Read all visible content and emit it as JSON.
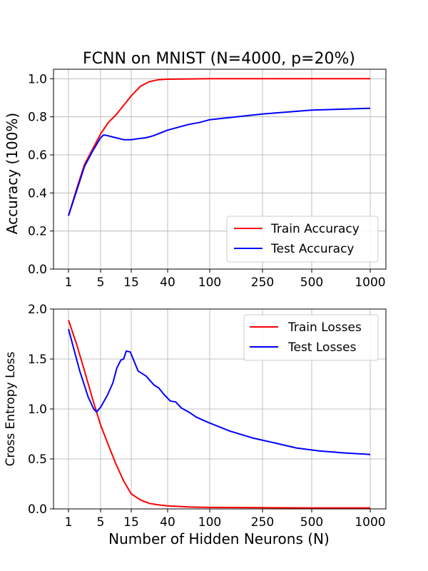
{
  "chart_data": [
    {
      "type": "line",
      "title": "FCNN on MNIST (N=4000, p=20%)",
      "xlabel": "",
      "ylabel": "Accuracy (100%)",
      "x_ticks": [
        "1",
        "5",
        "15",
        "40",
        "100",
        "250",
        "500",
        "1000"
      ],
      "ylim": [
        0.0,
        1.05
      ],
      "y_ticks": [
        "0.0",
        "0.2",
        "0.4",
        "0.6",
        "0.8",
        "1.0"
      ],
      "grid": true,
      "legend_position": "lower-right",
      "series": [
        {
          "name": "Train Accuracy",
          "color": "#ff0000",
          "points": [
            [
              0,
              0.28
            ],
            [
              0.25,
              0.42
            ],
            [
              0.5,
              0.55
            ],
            [
              0.75,
              0.63
            ],
            [
              1.0,
              0.71
            ],
            [
              1.25,
              0.77
            ],
            [
              1.5,
              0.81
            ],
            [
              1.75,
              0.86
            ],
            [
              2.0,
              0.91
            ],
            [
              2.25,
              0.96
            ],
            [
              2.5,
              0.985
            ],
            [
              2.75,
              0.995
            ],
            [
              3.0,
              0.998
            ],
            [
              3.5,
              0.999
            ],
            [
              4,
              1.0
            ],
            [
              5,
              1.0
            ],
            [
              6,
              1.0
            ],
            [
              7,
              1.0
            ]
          ]
        },
        {
          "name": "Test Accuracy",
          "color": "#0000ff",
          "points": [
            [
              0,
              0.28
            ],
            [
              0.25,
              0.41
            ],
            [
              0.5,
              0.54
            ],
            [
              0.75,
              0.62
            ],
            [
              1.0,
              0.69
            ],
            [
              1.1,
              0.705
            ],
            [
              1.25,
              0.7
            ],
            [
              1.5,
              0.69
            ],
            [
              1.75,
              0.68
            ],
            [
              2.0,
              0.68
            ],
            [
              2.2,
              0.685
            ],
            [
              2.4,
              0.69
            ],
            [
              2.6,
              0.7
            ],
            [
              2.8,
              0.715
            ],
            [
              3.0,
              0.73
            ],
            [
              3.25,
              0.745
            ],
            [
              3.5,
              0.76
            ],
            [
              3.75,
              0.77
            ],
            [
              4.0,
              0.785
            ],
            [
              4.5,
              0.8
            ],
            [
              5.0,
              0.815
            ],
            [
              5.5,
              0.825
            ],
            [
              6.0,
              0.835
            ],
            [
              6.5,
              0.84
            ],
            [
              7.0,
              0.845
            ]
          ]
        }
      ]
    },
    {
      "type": "line",
      "title": "",
      "xlabel": "Number of Hidden Neurons (N)",
      "ylabel": "Cross Entropy Loss",
      "x_ticks": [
        "1",
        "5",
        "15",
        "40",
        "100",
        "250",
        "500",
        "1000"
      ],
      "ylim": [
        0.0,
        2.0
      ],
      "y_ticks": [
        "0.0",
        "0.5",
        "1.0",
        "1.5",
        "2.0"
      ],
      "grid": true,
      "legend_position": "upper-right",
      "series": [
        {
          "name": "Train Losses",
          "color": "#ff0000",
          "points": [
            [
              0,
              1.89
            ],
            [
              0.25,
              1.65
            ],
            [
              0.5,
              1.38
            ],
            [
              0.75,
              1.1
            ],
            [
              1.0,
              0.84
            ],
            [
              1.25,
              0.64
            ],
            [
              1.5,
              0.45
            ],
            [
              1.75,
              0.28
            ],
            [
              2.0,
              0.15
            ],
            [
              2.25,
              0.09
            ],
            [
              2.5,
              0.055
            ],
            [
              2.75,
              0.04
            ],
            [
              3.0,
              0.03
            ],
            [
              3.5,
              0.02
            ],
            [
              4,
              0.015
            ],
            [
              5,
              0.012
            ],
            [
              6,
              0.01
            ],
            [
              7,
              0.01
            ]
          ]
        },
        {
          "name": "Test Losses",
          "color": "#0000ff",
          "points": [
            [
              0,
              1.8
            ],
            [
              0.4,
              1.38
            ],
            [
              0.7,
              1.12
            ],
            [
              0.9,
              1.0
            ],
            [
              1.0,
              0.97
            ],
            [
              1.15,
              1.02
            ],
            [
              1.4,
              1.14
            ],
            [
              1.6,
              1.26
            ],
            [
              1.75,
              1.41
            ],
            [
              1.9,
              1.49
            ],
            [
              2.0,
              1.5
            ],
            [
              2.1,
              1.58
            ],
            [
              2.25,
              1.57
            ],
            [
              2.5,
              1.38
            ],
            [
              2.75,
              1.33
            ],
            [
              3.0,
              1.24
            ],
            [
              3.15,
              1.21
            ],
            [
              3.3,
              1.15
            ],
            [
              3.5,
              1.08
            ],
            [
              3.65,
              1.07
            ],
            [
              3.8,
              1.01
            ],
            [
              4.0,
              0.97
            ],
            [
              4.2,
              0.92
            ],
            [
              4.5,
              0.87
            ],
            [
              5.0,
              0.78
            ],
            [
              5.5,
              0.71
            ],
            [
              6.0,
              0.66
            ],
            [
              6.5,
              0.61
            ],
            [
              7.0,
              0.58
            ],
            [
              7.5,
              0.56
            ],
            [
              8.0,
              0.545
            ]
          ]
        }
      ]
    }
  ]
}
